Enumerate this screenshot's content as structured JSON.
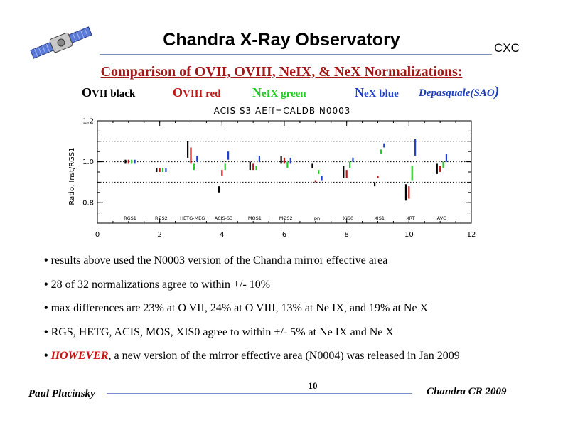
{
  "header": {
    "title": "Chandra X-Ray Observatory",
    "badge": "CXC"
  },
  "subtitle": "Comparison of OVII, OVIII, NeIX, & NeX Normalizations:",
  "legend": [
    {
      "big": "O",
      "rest": "VII black",
      "color": "#000000"
    },
    {
      "big": "O",
      "rest": "VIII red",
      "color": "#c01818"
    },
    {
      "big": "N",
      "rest": "eIX green",
      "color": "#22cc22"
    },
    {
      "big": "N",
      "rest": "eX blue",
      "color": "#2040d0"
    }
  ],
  "legend_credit": {
    "text": "Depasquale(SAO",
    "paren": ")"
  },
  "chart_data": {
    "type": "scatter",
    "title": "ACIS S3 AEff=CALDB N0003",
    "ylabel": "Ratio, Inst/RGS1",
    "xlabel": "",
    "xlim": [
      0,
      12
    ],
    "ylim": [
      0.7,
      1.2
    ],
    "x_ticks": [
      "0",
      "2",
      "4",
      "6",
      "8",
      "10",
      "12"
    ],
    "y_ticks": [
      "0.8",
      "1.0",
      "1.2"
    ],
    "dotted_lines": [
      0.9,
      1.0,
      1.1
    ],
    "instruments": [
      "RGS1",
      "RGS2",
      "HETG-MEG",
      "ACIS-S3",
      "MOS1",
      "MOS2",
      "pn",
      "XIS0",
      "XIS1",
      "XRT",
      "AVG"
    ],
    "series": [
      {
        "name": "OVII",
        "color": "#000000",
        "x": [
          0.9,
          1.9,
          2.9,
          3.9,
          4.9,
          5.9,
          6.9,
          7.9,
          8.9,
          9.9,
          10.9
        ],
        "lo": [
          0.99,
          0.95,
          1.02,
          0.85,
          0.96,
          0.99,
          0.97,
          0.92,
          0.88,
          0.81,
          0.94
        ],
        "hi": [
          1.01,
          0.97,
          1.1,
          0.88,
          1.0,
          1.03,
          0.99,
          0.98,
          0.9,
          0.89,
          0.99
        ]
      },
      {
        "name": "OVIII",
        "color": "#c01818",
        "x": [
          1.0,
          2.0,
          3.0,
          4.0,
          5.0,
          6.0,
          7.0,
          8.0,
          9.0,
          10.0,
          11.0
        ],
        "lo": [
          0.99,
          0.95,
          0.99,
          0.93,
          0.96,
          0.99,
          0.9,
          0.92,
          0.92,
          0.82,
          0.95
        ],
        "hi": [
          1.01,
          0.97,
          1.07,
          0.96,
          0.99,
          1.02,
          0.91,
          0.96,
          0.93,
          0.88,
          0.98
        ]
      },
      {
        "name": "NeIX",
        "color": "#22cc22",
        "x": [
          1.1,
          2.1,
          3.1,
          4.1,
          5.1,
          6.1,
          7.1,
          8.1,
          9.1,
          10.1,
          11.1
        ],
        "lo": [
          0.99,
          0.95,
          0.96,
          0.96,
          0.96,
          0.97,
          0.94,
          0.97,
          1.04,
          0.91,
          0.97
        ],
        "hi": [
          1.01,
          0.97,
          0.99,
          0.99,
          0.98,
          1.0,
          0.96,
          1.0,
          1.06,
          0.98,
          1.0
        ]
      },
      {
        "name": "NeX",
        "color": "#2040d0",
        "x": [
          1.2,
          2.2,
          3.2,
          4.2,
          5.2,
          6.2,
          7.2,
          8.2,
          9.2,
          10.2,
          11.2
        ],
        "lo": [
          0.99,
          0.95,
          1.0,
          1.01,
          1.0,
          0.99,
          0.91,
          1.0,
          1.07,
          1.03,
          1.0
        ],
        "hi": [
          1.01,
          0.97,
          1.03,
          1.05,
          1.03,
          1.02,
          0.93,
          1.02,
          1.09,
          1.11,
          1.04
        ]
      }
    ],
    "grid": false,
    "legend": "none"
  },
  "bullets": [
    {
      "emph": "",
      "text": "results above used the N0003 version of the Chandra mirror effective area"
    },
    {
      "emph": "",
      "text": "28 of 32 normalizations agree to within +/- 10%"
    },
    {
      "emph": "",
      "text": "max differences are 23% at O VII, 24% at O VIII, 13% at Ne IX, and 19% at Ne X"
    },
    {
      "emph": "",
      "text": "RGS, HETG, ACIS, MOS, XIS0 agree to within +/- 5% at Ne IX and Ne X"
    },
    {
      "emph": "HOWEVER",
      "text": ",  a new version of the mirror effective area (N0004) was released in Jan 2009"
    }
  ],
  "footer": {
    "author": "Paul Plucinsky",
    "page": "10",
    "event": "Chandra CR 2009"
  }
}
